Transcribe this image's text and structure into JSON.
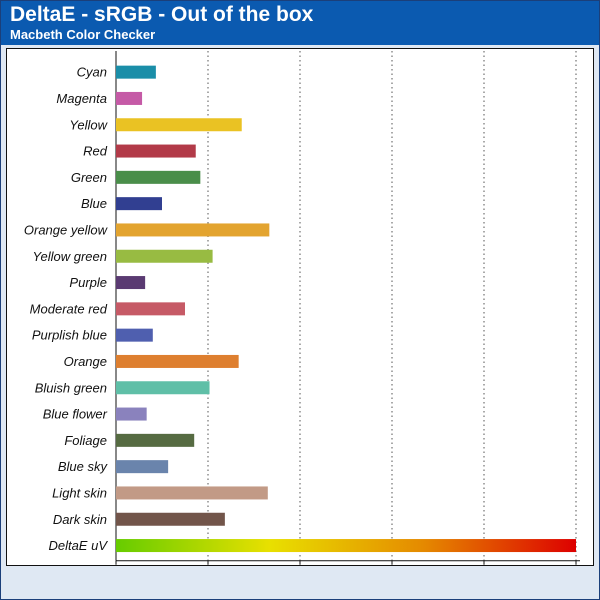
{
  "header": {
    "title": "DeltaE - sRGB - Out of the box",
    "subtitle": "Macbeth Color Checker"
  },
  "chart_data": {
    "type": "bar",
    "orientation": "horizontal",
    "title": "DeltaE - sRGB - Out of the box",
    "subtitle": "Macbeth Color Checker",
    "xlabel": "",
    "ylabel": "",
    "xlim": [
      0,
      15
    ],
    "xticks": [
      0,
      3,
      6,
      9,
      12,
      15
    ],
    "grid": "vertical-dotted",
    "legend": "none",
    "bars": [
      {
        "category": "Cyan",
        "value": 1.3,
        "color": "#1a8ea8"
      },
      {
        "category": "Magenta",
        "value": 0.85,
        "color": "#c55aa6"
      },
      {
        "category": "Yellow",
        "value": 4.1,
        "color": "#eac223"
      },
      {
        "category": "Red",
        "value": 2.6,
        "color": "#b23a48"
      },
      {
        "category": "Green",
        "value": 2.75,
        "color": "#4a8e4a"
      },
      {
        "category": "Blue",
        "value": 1.5,
        "color": "#313f91"
      },
      {
        "category": "Orange yellow",
        "value": 5.0,
        "color": "#e3a430"
      },
      {
        "category": "Yellow green",
        "value": 3.15,
        "color": "#98bb42"
      },
      {
        "category": "Purple",
        "value": 0.95,
        "color": "#5a3a72"
      },
      {
        "category": "Moderate red",
        "value": 2.25,
        "color": "#c65a66"
      },
      {
        "category": "Purplish blue",
        "value": 1.2,
        "color": "#4f5faf"
      },
      {
        "category": "Orange",
        "value": 4.0,
        "color": "#de7f2f"
      },
      {
        "category": "Bluish green",
        "value": 3.05,
        "color": "#5fbfa7"
      },
      {
        "category": "Blue flower",
        "value": 1.0,
        "color": "#8a82bd"
      },
      {
        "category": "Foliage",
        "value": 2.55,
        "color": "#566b42"
      },
      {
        "category": "Blue sky",
        "value": 1.7,
        "color": "#6a84ac"
      },
      {
        "category": "Light skin",
        "value": 4.95,
        "color": "#c29a86"
      },
      {
        "category": "Dark skin",
        "value": 3.55,
        "color": "#72554a"
      },
      {
        "category": "DeltaE uV",
        "value": 15.0,
        "color": "gradient"
      }
    ],
    "gradient_colors": [
      "#66cc00",
      "#e8e000",
      "#e58a00",
      "#dd0000"
    ]
  }
}
